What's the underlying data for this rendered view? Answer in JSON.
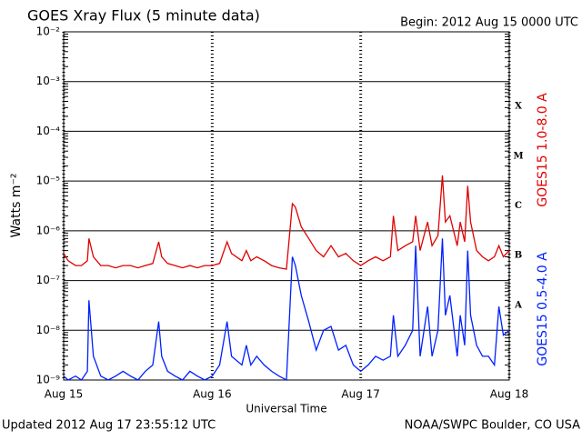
{
  "chart_data": {
    "type": "line",
    "title": "GOES Xray Flux (5 minute data)",
    "subtitle": "Begin:  2012 Aug 15 0000 UTC",
    "xlabel": "Universal Time",
    "ylabel": "Watts m⁻²",
    "footer_left": "Updated 2012 Aug 17 23:55:12 UTC",
    "footer_right": "NOAA/SWPC Boulder, CO USA",
    "log_y": true,
    "grid": true,
    "flare_classes": [
      "X",
      "M",
      "C",
      "B",
      "A"
    ],
    "x": [
      0,
      0.03,
      0.08,
      0.12,
      0.16,
      0.17,
      0.2,
      0.25,
      0.3,
      0.35,
      0.4,
      0.45,
      0.5,
      0.55,
      0.6,
      0.64,
      0.66,
      0.7,
      0.75,
      0.8,
      0.85,
      0.9,
      0.95,
      1.0,
      1.05,
      1.1,
      1.13,
      1.2,
      1.23,
      1.26,
      1.3,
      1.35,
      1.4,
      1.45,
      1.5,
      1.54,
      1.56,
      1.6,
      1.65,
      1.7,
      1.75,
      1.8,
      1.85,
      1.9,
      1.95,
      2.0,
      2.05,
      2.1,
      2.15,
      2.2,
      2.22,
      2.25,
      2.3,
      2.35,
      2.37,
      2.4,
      2.45,
      2.48,
      2.52,
      2.55,
      2.57,
      2.6,
      2.65,
      2.67,
      2.7,
      2.72,
      2.74,
      2.78,
      2.82,
      2.86,
      2.9,
      2.93,
      2.96,
      3.0
    ],
    "xlim": [
      0,
      3
    ],
    "xticks": [
      {
        "value": 0,
        "label": "Aug 15"
      },
      {
        "value": 1,
        "label": "Aug 16"
      },
      {
        "value": 2,
        "label": "Aug 17"
      },
      {
        "value": 3,
        "label": "Aug 18"
      }
    ],
    "ylim": [
      1e-09,
      0.01
    ],
    "yticks": [
      {
        "value": 1e-09,
        "label": "10⁻⁹"
      },
      {
        "value": 1e-08,
        "label": "10⁻⁸"
      },
      {
        "value": 1e-07,
        "label": "10⁻⁷"
      },
      {
        "value": 1e-06,
        "label": "10⁻⁶"
      },
      {
        "value": 1e-05,
        "label": "10⁻⁵"
      },
      {
        "value": 0.0001,
        "label": "10⁻⁴"
      },
      {
        "value": 0.001,
        "label": "10⁻³"
      },
      {
        "value": 0.01,
        "label": "10⁻²"
      }
    ],
    "series": [
      {
        "name": "GOES15 1.0-8.0 A",
        "color": "#e00000",
        "values": [
          3.5e-07,
          2.5e-07,
          2e-07,
          2e-07,
          2.5e-07,
          7e-07,
          3e-07,
          2e-07,
          2e-07,
          1.8e-07,
          2e-07,
          2e-07,
          1.8e-07,
          2e-07,
          2.2e-07,
          6e-07,
          3e-07,
          2.2e-07,
          2e-07,
          1.8e-07,
          2e-07,
          1.8e-07,
          2e-07,
          2e-07,
          2.2e-07,
          6e-07,
          3.5e-07,
          2.5e-07,
          4e-07,
          2.5e-07,
          3e-07,
          2.5e-07,
          2e-07,
          1.8e-07,
          1.7e-07,
          3.5e-06,
          3e-06,
          1.2e-06,
          7e-07,
          4e-07,
          3e-07,
          5e-07,
          3e-07,
          3.5e-07,
          2.5e-07,
          2e-07,
          2.5e-07,
          3e-07,
          2.5e-07,
          3e-07,
          2e-06,
          4e-07,
          5e-07,
          6e-07,
          2e-06,
          4e-07,
          1.5e-06,
          5e-07,
          8e-07,
          1.3e-05,
          1.5e-06,
          2e-06,
          5e-07,
          1.5e-06,
          6e-07,
          8e-06,
          1.5e-06,
          4e-07,
          3e-07,
          2.5e-07,
          3e-07,
          5e-07,
          3e-07,
          4e-07
        ]
      },
      {
        "name": "GOES15 0.5-4.0 A",
        "color": "#0020ff",
        "values": [
          1.2e-09,
          1e-09,
          1.2e-09,
          1e-09,
          1.5e-09,
          4e-08,
          3e-09,
          1.2e-09,
          1e-09,
          1.2e-09,
          1.5e-09,
          1.2e-09,
          1e-09,
          1.5e-09,
          2e-09,
          1.5e-08,
          3e-09,
          1.5e-09,
          1.2e-09,
          1e-09,
          1.5e-09,
          1.2e-09,
          1e-09,
          1.2e-09,
          2e-09,
          1.5e-08,
          3e-09,
          2e-09,
          5e-09,
          2e-09,
          3e-09,
          2e-09,
          1.5e-09,
          1.2e-09,
          1e-09,
          3e-07,
          2e-07,
          5e-08,
          1.5e-08,
          4e-09,
          1e-08,
          1.2e-08,
          4e-09,
          5e-09,
          2e-09,
          1.5e-09,
          2e-09,
          3e-09,
          2.5e-09,
          3e-09,
          2e-08,
          3e-09,
          5e-09,
          1e-08,
          5e-07,
          3e-09,
          3e-08,
          3e-09,
          1e-08,
          7e-07,
          2e-08,
          5e-08,
          3e-09,
          2e-08,
          5e-09,
          4e-07,
          2e-08,
          5e-09,
          3e-09,
          3e-09,
          2e-09,
          3e-08,
          8e-09,
          1e-08
        ]
      }
    ]
  }
}
